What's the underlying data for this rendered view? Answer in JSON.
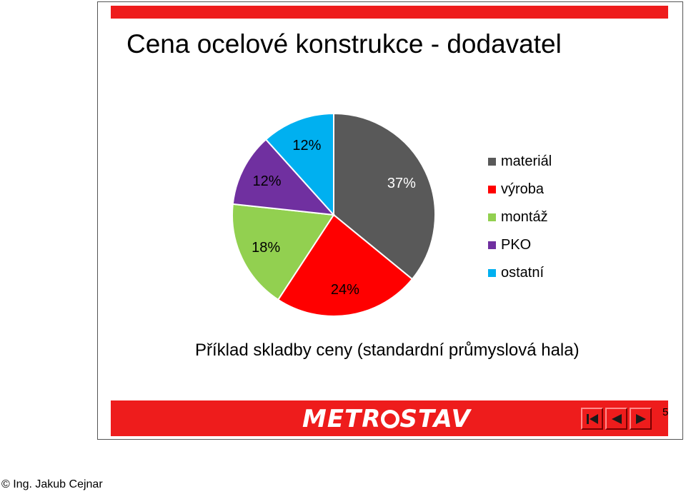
{
  "slide": {
    "title": "Cena ocelové konstrukce - dodavatel",
    "caption": "Příklad skladby ceny (standardní průmyslová hala)",
    "page_number": "5"
  },
  "footer": {
    "logo_text": "METR◎STAV",
    "nav": [
      {
        "icon": "first-slide-icon"
      },
      {
        "icon": "previous-slide-icon"
      },
      {
        "icon": "next-slide-icon"
      }
    ]
  },
  "credit": "© Ing. Jakub Cejnar",
  "chart_data": {
    "type": "pie",
    "title": "",
    "legend_position": "right",
    "slices": [
      {
        "name": "materiál",
        "value": 37,
        "label": "37%",
        "color": "#595959"
      },
      {
        "name": "výroba",
        "value": 24,
        "label": "24%",
        "color": "#ff0000"
      },
      {
        "name": "montáž",
        "value": 18,
        "label": "18%",
        "color": "#92d050"
      },
      {
        "name": "PKO",
        "value": 12,
        "label": "12%",
        "color": "#7030a0"
      },
      {
        "name": "ostatní",
        "value": 12,
        "label": "12%",
        "color": "#00b0f0"
      }
    ]
  }
}
